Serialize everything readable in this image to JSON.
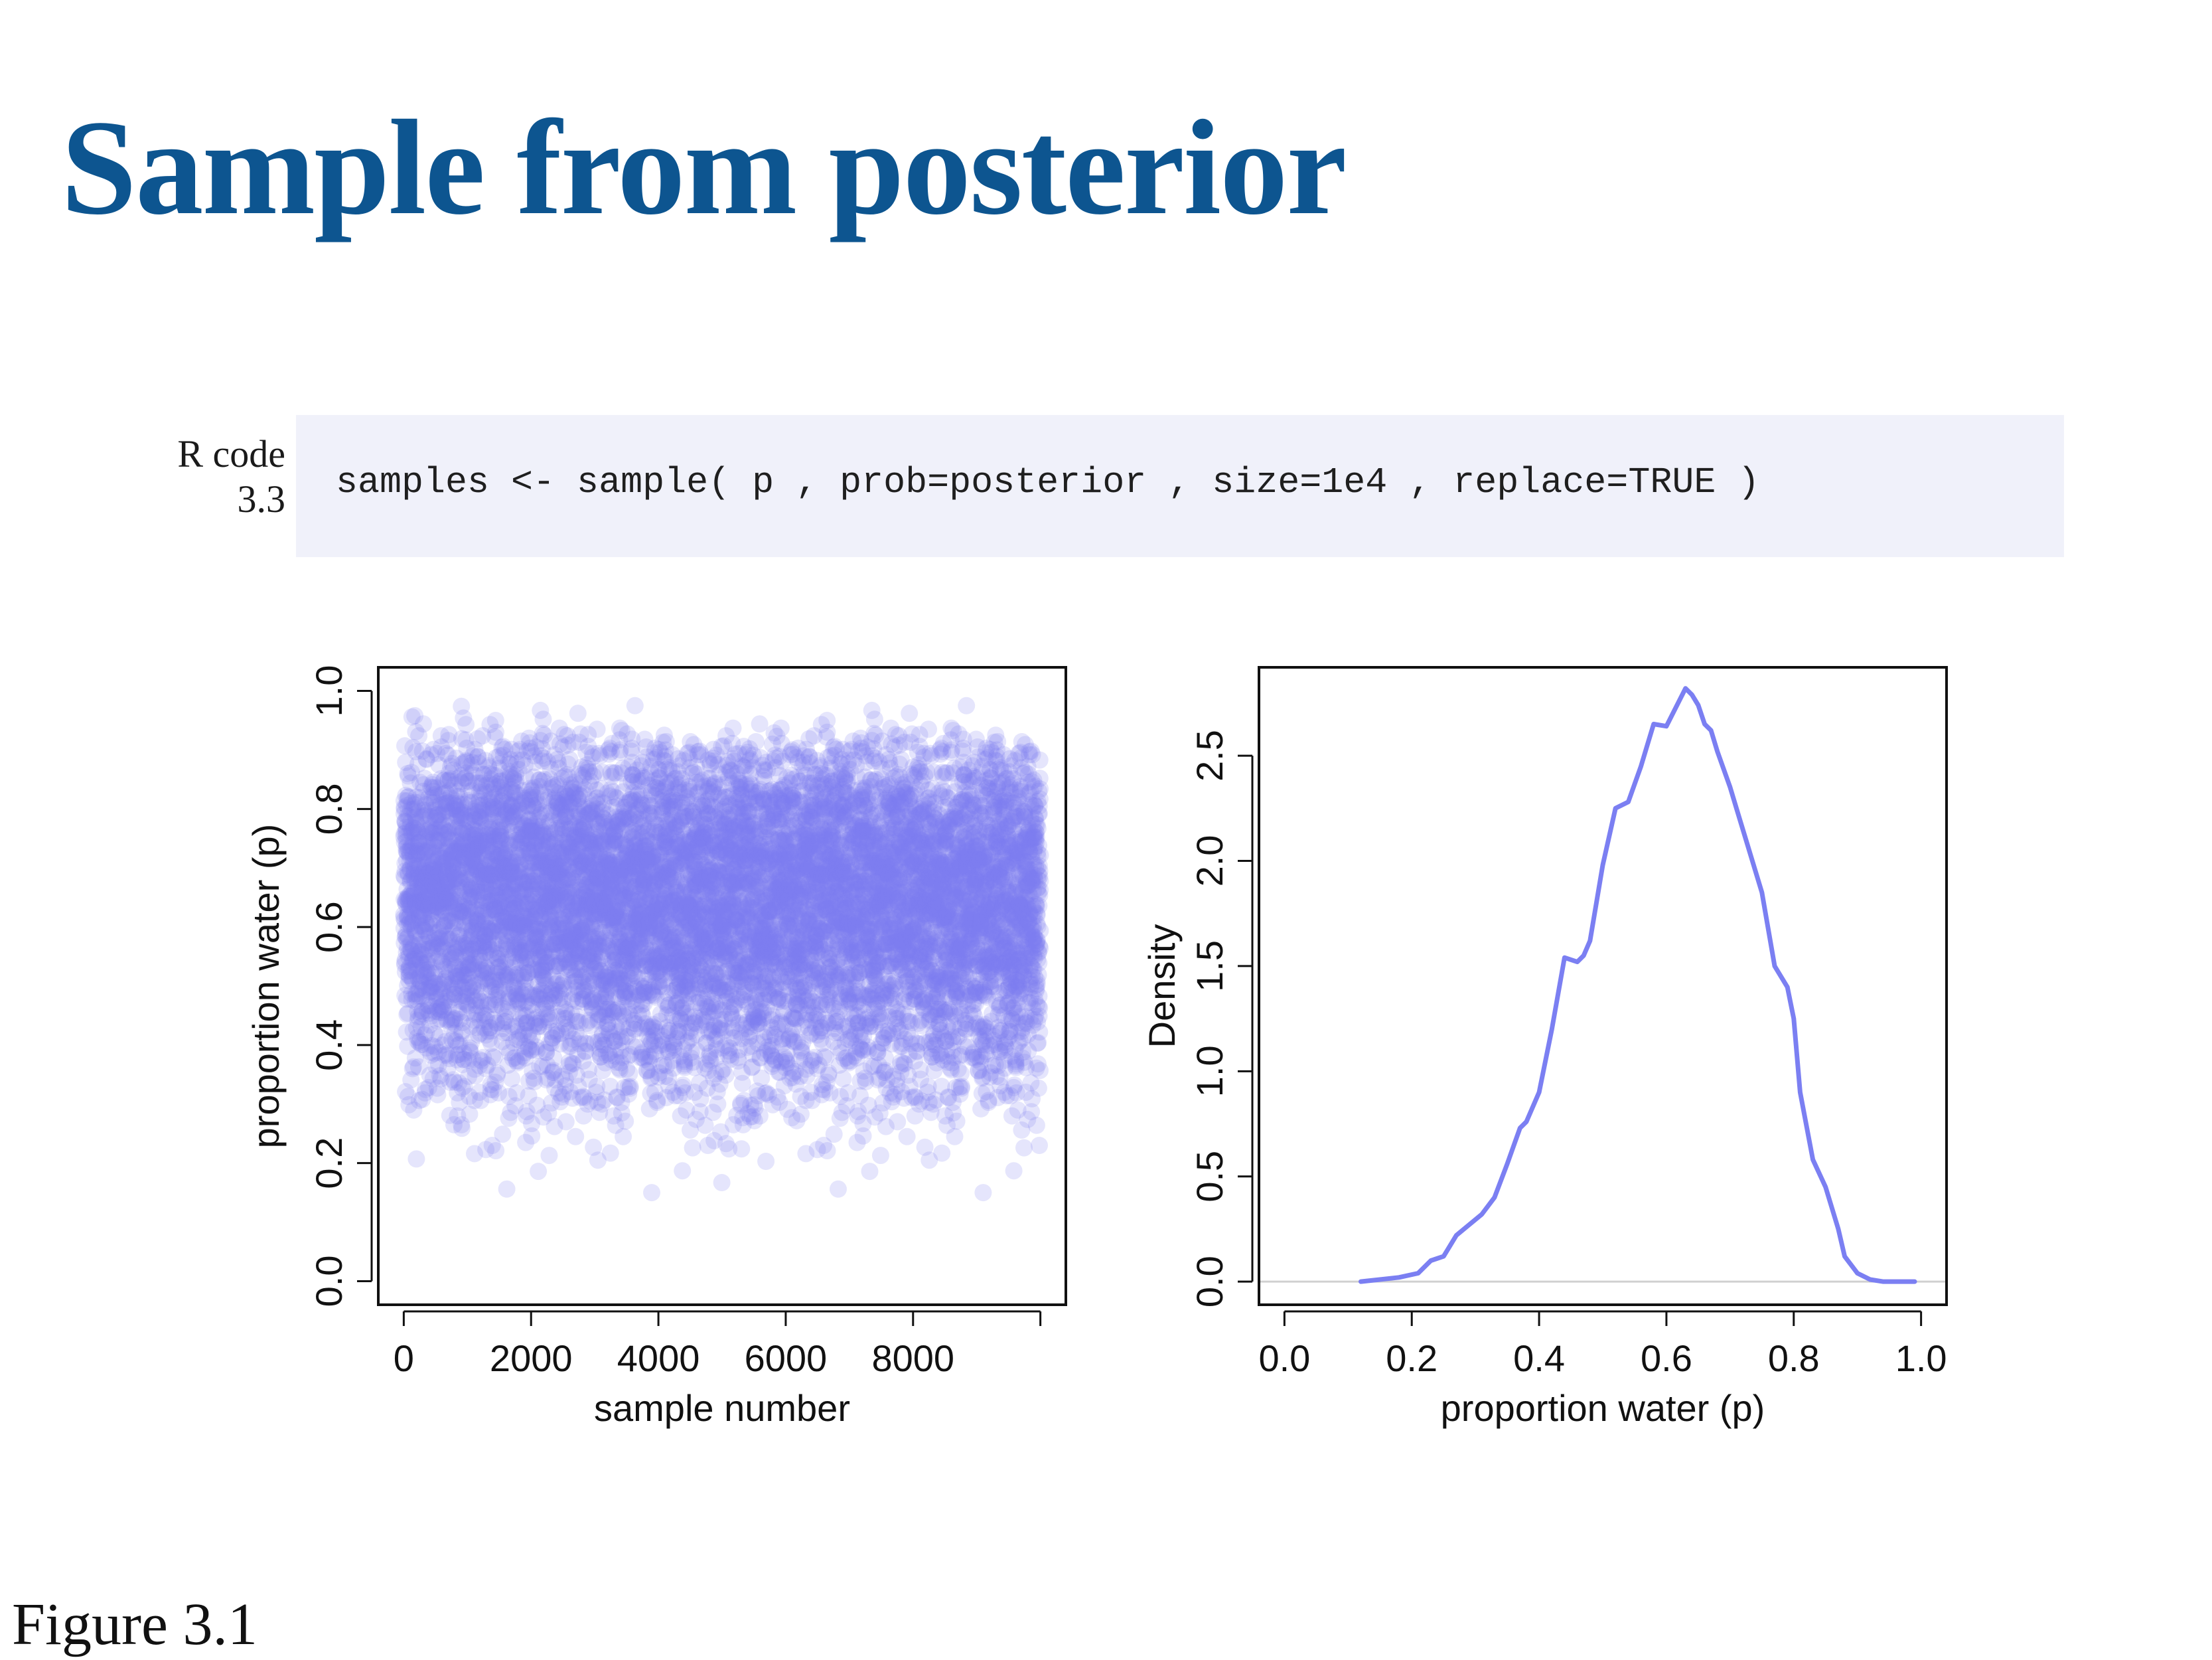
{
  "slide": {
    "title": "Sample from posterior",
    "figure_caption": "Figure 3.1"
  },
  "code_block": {
    "label_line1": "R code",
    "label_line2": "3.3",
    "code": "samples <- sample( p , prob=posterior , size=1e4 , replace=TRUE )"
  },
  "colors": {
    "title": "#0d5590",
    "code_background": "#f0f1fa",
    "series": "#7b7ff2"
  },
  "chart_data": [
    {
      "type": "scatter",
      "title": "",
      "xlabel": "sample number",
      "ylabel": "proportion water (p)",
      "xlim": [
        -400,
        10400
      ],
      "ylim": [
        -0.04,
        1.04
      ],
      "x_ticks": [
        0,
        2000,
        4000,
        6000,
        8000,
        10000
      ],
      "x_tick_labels": [
        "0",
        "2000",
        "4000",
        "6000",
        "8000",
        ""
      ],
      "y_ticks": [
        0.0,
        0.2,
        0.4,
        0.6,
        0.8,
        1.0
      ],
      "y_tick_labels": [
        "0.0",
        "0.2",
        "0.4",
        "0.6",
        "0.8",
        "1.0"
      ],
      "n_samples": 10000,
      "point_color": "#7b7ff2",
      "point_opacity": 0.2,
      "grid": false,
      "distribution_summary": {
        "center": 0.64,
        "min": 0.14,
        "max": 0.97
      }
    },
    {
      "type": "line",
      "title": "",
      "xlabel": "proportion water (p)",
      "ylabel": "Density",
      "xlim": [
        -0.04,
        1.04
      ],
      "ylim": [
        -0.11,
        2.92
      ],
      "x_ticks": [
        0.0,
        0.2,
        0.4,
        0.6,
        0.8,
        1.0
      ],
      "x_tick_labels": [
        "0.0",
        "0.2",
        "0.4",
        "0.6",
        "0.8",
        "1.0"
      ],
      "y_ticks": [
        0.0,
        0.5,
        1.0,
        1.5,
        2.0,
        2.5
      ],
      "y_tick_labels": [
        "0.0",
        "0.5",
        "1.0",
        "1.5",
        "2.0",
        "2.5"
      ],
      "line_color": "#7b7ff2",
      "grid": false,
      "baseline": 0,
      "x": [
        0.12,
        0.15,
        0.18,
        0.21,
        0.23,
        0.25,
        0.27,
        0.29,
        0.31,
        0.33,
        0.35,
        0.37,
        0.38,
        0.4,
        0.42,
        0.44,
        0.46,
        0.47,
        0.48,
        0.49,
        0.5,
        0.52,
        0.54,
        0.56,
        0.57,
        0.58,
        0.6,
        0.62,
        0.63,
        0.64,
        0.65,
        0.66,
        0.67,
        0.68,
        0.7,
        0.71,
        0.73,
        0.75,
        0.77,
        0.79,
        0.8,
        0.81,
        0.83,
        0.85,
        0.87,
        0.88,
        0.9,
        0.92,
        0.94,
        0.96,
        0.98,
        0.99
      ],
      "y": [
        0.0,
        0.01,
        0.02,
        0.04,
        0.1,
        0.12,
        0.22,
        0.27,
        0.32,
        0.4,
        0.56,
        0.73,
        0.76,
        0.9,
        1.2,
        1.54,
        1.52,
        1.55,
        1.62,
        1.8,
        1.98,
        2.25,
        2.28,
        2.45,
        2.55,
        2.65,
        2.64,
        2.76,
        2.82,
        2.79,
        2.74,
        2.65,
        2.62,
        2.52,
        2.35,
        2.25,
        2.05,
        1.85,
        1.5,
        1.4,
        1.25,
        0.9,
        0.58,
        0.45,
        0.25,
        0.12,
        0.04,
        0.01,
        0.0,
        0.0,
        0.0,
        0.0
      ]
    }
  ]
}
